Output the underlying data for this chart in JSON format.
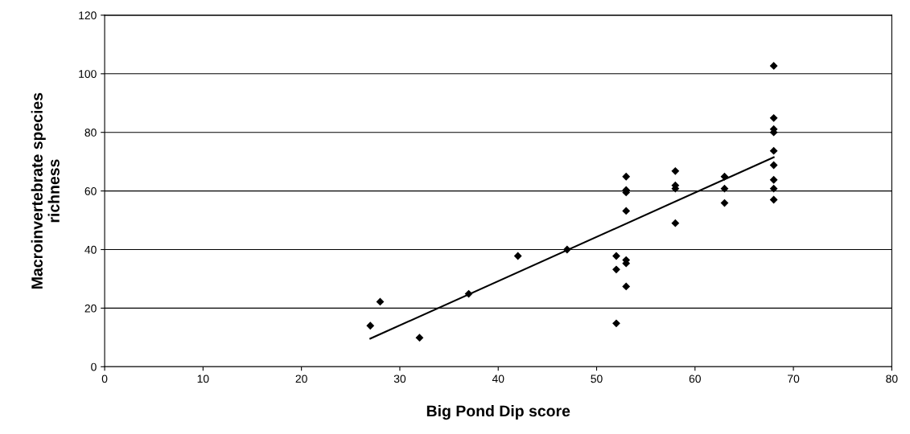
{
  "chart_data": {
    "type": "scatter",
    "xlabel": "Big Pond Dip score",
    "ylabel": "Macroinvertebrate species\nrichness",
    "xlim": [
      0,
      80
    ],
    "xticks": [
      0,
      10,
      20,
      30,
      40,
      50,
      60,
      70,
      80
    ],
    "ylim": [
      0,
      120
    ],
    "yticks": [
      0,
      20,
      40,
      60,
      80,
      100,
      120
    ],
    "grid": "y",
    "series": [
      {
        "marker": "diamond",
        "color": "#000000",
        "x": [
          27,
          28,
          32,
          37,
          42,
          47,
          52,
          52,
          52,
          53,
          53,
          53,
          53,
          53,
          53,
          53,
          58,
          58,
          58,
          58,
          63,
          63,
          63,
          68,
          68,
          68,
          68,
          68,
          68,
          68,
          68,
          68
        ],
        "values": [
          14,
          22.2,
          9.9,
          24.9,
          37.8,
          40,
          37.8,
          33.2,
          14.8,
          64.9,
          60.3,
          59.5,
          53.2,
          36.4,
          35.3,
          27.4,
          66.8,
          61.9,
          60.8,
          49,
          64.9,
          60.8,
          55.9,
          102.7,
          84.9,
          81.1,
          80,
          73.7,
          68.8,
          63.8,
          60.8,
          57
        ]
      },
      {
        "type": "line",
        "marker": "none",
        "color": "#000000",
        "x": [
          27,
          68
        ],
        "values": [
          9.6,
          71.5
        ]
      }
    ]
  }
}
